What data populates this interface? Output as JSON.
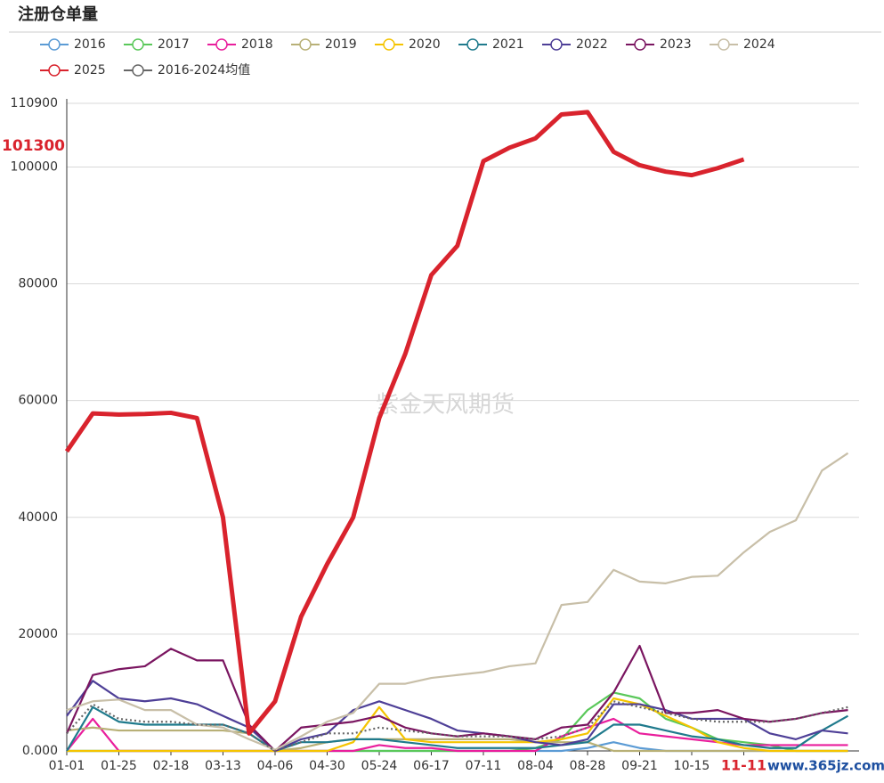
{
  "chart_data": {
    "type": "line",
    "title": "注册仓单量",
    "watermark": "紫金天风期货",
    "site_mark": "www.365jz.com",
    "categories": [
      "01-01",
      null,
      "01-25",
      null,
      "02-18",
      null,
      "03-13",
      null,
      "04-06",
      null,
      "04-30",
      null,
      "05-24",
      null,
      "06-17",
      null,
      "07-11",
      null,
      "08-04",
      null,
      "08-28",
      null,
      "09-21",
      null,
      "10-15",
      null,
      "11-11",
      null,
      null,
      null,
      null
    ],
    "ylim": [
      0,
      110900
    ],
    "yticks": [
      {
        "value": 0,
        "label": "0.000"
      },
      20000,
      40000,
      60000,
      80000,
      100000,
      110900
    ],
    "grid": true,
    "highlight_color": "#d9232d",
    "series": [
      {
        "name": "2016",
        "color": "#5b9bd5",
        "values": [
          0,
          0,
          0,
          0,
          0,
          0,
          0,
          0,
          0,
          0,
          0,
          0,
          0,
          0,
          0,
          0,
          0,
          0,
          0,
          0,
          500,
          1500,
          500,
          0,
          0,
          0,
          0,
          0,
          0,
          0,
          0
        ]
      },
      {
        "name": "2017",
        "color": "#5ac85a",
        "values": [
          0,
          0,
          0,
          0,
          0,
          0,
          0,
          0,
          0,
          0,
          0,
          0,
          0,
          0,
          0,
          0,
          0,
          0,
          500,
          2000,
          7000,
          10000,
          9000,
          5500,
          4000,
          2000,
          1500,
          1000,
          0,
          0,
          0
        ]
      },
      {
        "name": "2018",
        "color": "#e91e9c",
        "values": [
          0,
          5500,
          0,
          0,
          0,
          0,
          0,
          0,
          0,
          0,
          0,
          0,
          1000,
          500,
          500,
          0,
          0,
          0,
          0,
          2500,
          4000,
          5500,
          3000,
          2500,
          2000,
          1500,
          1000,
          1000,
          1000,
          1000,
          1000
        ]
      },
      {
        "name": "2019",
        "color": "#b8b077",
        "values": [
          3500,
          4000,
          3500,
          3500,
          3500,
          3500,
          3500,
          3000,
          0,
          500,
          1500,
          2000,
          2000,
          2000,
          2000,
          2000,
          2000,
          2000,
          1500,
          1500,
          1500,
          0,
          0,
          0,
          0,
          0,
          0,
          0,
          0,
          0,
          0
        ]
      },
      {
        "name": "2020",
        "color": "#f5c400",
        "values": [
          0,
          0,
          0,
          0,
          0,
          0,
          0,
          0,
          0,
          0,
          0,
          1500,
          7500,
          2000,
          1500,
          1500,
          1500,
          1500,
          1500,
          2000,
          3000,
          9000,
          8000,
          6000,
          4000,
          1500,
          500,
          0,
          0,
          0,
          0
        ]
      },
      {
        "name": "2021",
        "color": "#1f7a8c",
        "values": [
          0,
          7500,
          5000,
          4500,
          4500,
          4500,
          4500,
          3000,
          0,
          1500,
          1500,
          2000,
          2000,
          1500,
          1000,
          500,
          500,
          500,
          500,
          1000,
          1500,
          4500,
          4500,
          3500,
          2500,
          2000,
          1000,
          500,
          500,
          3500,
          6000
        ]
      },
      {
        "name": "2022",
        "color": "#4e3f97",
        "values": [
          6000,
          12000,
          9000,
          8500,
          9000,
          8000,
          6000,
          4000,
          0,
          2000,
          3000,
          7000,
          8500,
          7000,
          5500,
          3500,
          3000,
          2500,
          1500,
          1000,
          2000,
          8000,
          8000,
          7000,
          5500,
          5500,
          5500,
          3000,
          2000,
          3500,
          3000
        ]
      },
      {
        "name": "2023",
        "color": "#7a1560",
        "values": [
          3000,
          13000,
          14000,
          14500,
          17500,
          15500,
          15500,
          4500,
          0,
          4000,
          4500,
          5000,
          6000,
          4000,
          3000,
          2500,
          3000,
          2500,
          2000,
          4000,
          4500,
          10000,
          18000,
          6500,
          6500,
          7000,
          5500,
          5000,
          5500,
          6500,
          7000
        ]
      },
      {
        "name": "2024",
        "color": "#c8bfa8",
        "values": [
          7000,
          8500,
          8800,
          7000,
          7000,
          4500,
          4000,
          2000,
          200,
          2500,
          5000,
          6500,
          11500,
          11500,
          12500,
          13000,
          13500,
          14500,
          15000,
          25000,
          25500,
          31000,
          29000,
          28700,
          29800,
          30000,
          34000,
          37500,
          39500,
          48000,
          51000
        ]
      },
      {
        "name": "2025",
        "color": "#d9232d",
        "highlight": true,
        "values": [
          51300,
          57800,
          57600,
          57700,
          57900,
          57000,
          40000,
          3000,
          8500,
          23000,
          32000,
          40000,
          57000,
          68000,
          81500,
          86500,
          101000,
          103300,
          104900,
          109000,
          109400,
          102600,
          100300,
          99200,
          98600,
          99800,
          101300,
          null,
          null,
          null,
          null
        ]
      },
      {
        "name": "2016-2024均值",
        "color": "#666666",
        "dashed": true,
        "values": [
          3000,
          8000,
          5500,
          5000,
          5000,
          4500,
          4500,
          3000,
          0,
          1500,
          3000,
          3000,
          4000,
          3500,
          3000,
          2500,
          2500,
          2500,
          2000,
          2500,
          4000,
          8500,
          7500,
          6500,
          5500,
          5000,
          5000,
          5000,
          5500,
          6500,
          7500
        ]
      }
    ]
  }
}
